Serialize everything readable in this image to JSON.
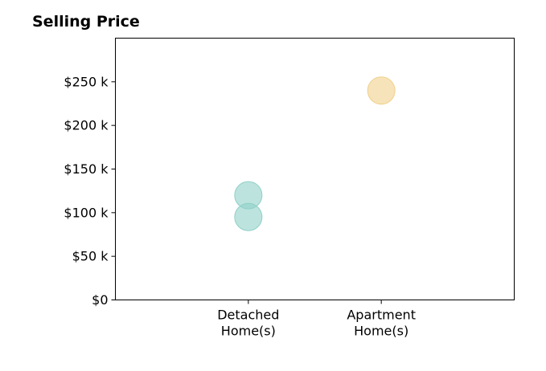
{
  "chart_data": {
    "type": "scatter",
    "title": "Selling Price",
    "xlabel": "",
    "ylabel": "",
    "categories": [
      [
        "Detached",
        "Home(s)"
      ],
      [
        "Apartment",
        "Home(s)"
      ]
    ],
    "y_ticks": [
      0,
      50000,
      100000,
      150000,
      200000,
      250000
    ],
    "y_tick_labels": [
      "$0",
      "$50 k",
      "$100 k",
      "$150 k",
      "$200 k",
      "$250 k"
    ],
    "ylim": [
      0,
      300000
    ],
    "grid": false,
    "points": [
      {
        "category": 0,
        "value": 120000,
        "color": "#8fd0c8"
      },
      {
        "category": 0,
        "value": 95000,
        "color": "#8fd0c8"
      },
      {
        "category": 1,
        "value": 240000,
        "color": "#f0d08a"
      }
    ]
  }
}
